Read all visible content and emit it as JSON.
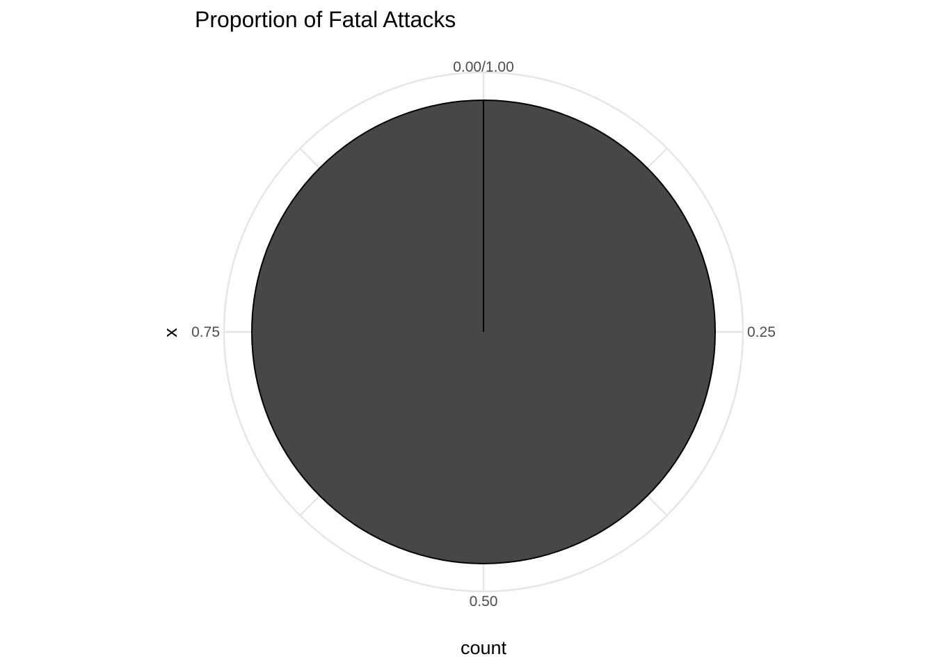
{
  "chart_data": {
    "type": "pie",
    "title": "Proportion of Fatal Attacks",
    "xlabel": "count",
    "ylabel": "x",
    "theta_axis": {
      "range": [
        0,
        1
      ],
      "ticks": [
        {
          "value": 0,
          "label": "0.00/1.00"
        },
        {
          "value": 0.25,
          "label": "0.25"
        },
        {
          "value": 0.5,
          "label": "0.50"
        },
        {
          "value": 0.75,
          "label": "0.75"
        }
      ]
    },
    "slices": [
      {
        "value": 1.0,
        "color": "#474747"
      }
    ],
    "slice_border_color": "#000000",
    "grid": true,
    "grid_color": "#e6e6e6",
    "legend": "none"
  }
}
